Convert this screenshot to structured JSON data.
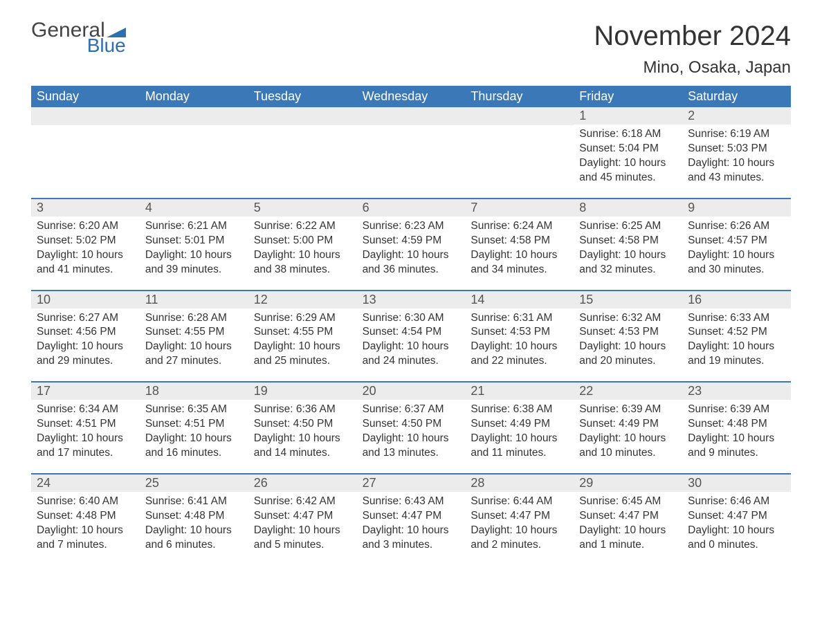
{
  "brand": {
    "name_part1": "General",
    "name_part2": "Blue",
    "icon_color": "#2f6fb0"
  },
  "title": "November 2024",
  "location": "Mino, Osaka, Japan",
  "colors": {
    "header_bg": "#3b78b8",
    "header_text": "#ffffff",
    "daynum_bg": "#ececec",
    "daynum_text": "#555555",
    "body_text": "#333333",
    "rule": "#3b78b8",
    "background": "#ffffff"
  },
  "layout": {
    "columns": 7,
    "rows": 5,
    "week_start": "Sunday"
  },
  "typography": {
    "title_fontsize": 40,
    "location_fontsize": 24,
    "weekday_fontsize": 18,
    "daynum_fontsize": 18,
    "body_fontsize": 15.5,
    "font_family": "Arial"
  },
  "weekdays": [
    "Sunday",
    "Monday",
    "Tuesday",
    "Wednesday",
    "Thursday",
    "Friday",
    "Saturday"
  ],
  "weeks": [
    [
      null,
      null,
      null,
      null,
      null,
      {
        "day": "1",
        "sunrise": "Sunrise: 6:18 AM",
        "sunset": "Sunset: 5:04 PM",
        "daylight1": "Daylight: 10 hours",
        "daylight2": "and 45 minutes."
      },
      {
        "day": "2",
        "sunrise": "Sunrise: 6:19 AM",
        "sunset": "Sunset: 5:03 PM",
        "daylight1": "Daylight: 10 hours",
        "daylight2": "and 43 minutes."
      }
    ],
    [
      {
        "day": "3",
        "sunrise": "Sunrise: 6:20 AM",
        "sunset": "Sunset: 5:02 PM",
        "daylight1": "Daylight: 10 hours",
        "daylight2": "and 41 minutes."
      },
      {
        "day": "4",
        "sunrise": "Sunrise: 6:21 AM",
        "sunset": "Sunset: 5:01 PM",
        "daylight1": "Daylight: 10 hours",
        "daylight2": "and 39 minutes."
      },
      {
        "day": "5",
        "sunrise": "Sunrise: 6:22 AM",
        "sunset": "Sunset: 5:00 PM",
        "daylight1": "Daylight: 10 hours",
        "daylight2": "and 38 minutes."
      },
      {
        "day": "6",
        "sunrise": "Sunrise: 6:23 AM",
        "sunset": "Sunset: 4:59 PM",
        "daylight1": "Daylight: 10 hours",
        "daylight2": "and 36 minutes."
      },
      {
        "day": "7",
        "sunrise": "Sunrise: 6:24 AM",
        "sunset": "Sunset: 4:58 PM",
        "daylight1": "Daylight: 10 hours",
        "daylight2": "and 34 minutes."
      },
      {
        "day": "8",
        "sunrise": "Sunrise: 6:25 AM",
        "sunset": "Sunset: 4:58 PM",
        "daylight1": "Daylight: 10 hours",
        "daylight2": "and 32 minutes."
      },
      {
        "day": "9",
        "sunrise": "Sunrise: 6:26 AM",
        "sunset": "Sunset: 4:57 PM",
        "daylight1": "Daylight: 10 hours",
        "daylight2": "and 30 minutes."
      }
    ],
    [
      {
        "day": "10",
        "sunrise": "Sunrise: 6:27 AM",
        "sunset": "Sunset: 4:56 PM",
        "daylight1": "Daylight: 10 hours",
        "daylight2": "and 29 minutes."
      },
      {
        "day": "11",
        "sunrise": "Sunrise: 6:28 AM",
        "sunset": "Sunset: 4:55 PM",
        "daylight1": "Daylight: 10 hours",
        "daylight2": "and 27 minutes."
      },
      {
        "day": "12",
        "sunrise": "Sunrise: 6:29 AM",
        "sunset": "Sunset: 4:55 PM",
        "daylight1": "Daylight: 10 hours",
        "daylight2": "and 25 minutes."
      },
      {
        "day": "13",
        "sunrise": "Sunrise: 6:30 AM",
        "sunset": "Sunset: 4:54 PM",
        "daylight1": "Daylight: 10 hours",
        "daylight2": "and 24 minutes."
      },
      {
        "day": "14",
        "sunrise": "Sunrise: 6:31 AM",
        "sunset": "Sunset: 4:53 PM",
        "daylight1": "Daylight: 10 hours",
        "daylight2": "and 22 minutes."
      },
      {
        "day": "15",
        "sunrise": "Sunrise: 6:32 AM",
        "sunset": "Sunset: 4:53 PM",
        "daylight1": "Daylight: 10 hours",
        "daylight2": "and 20 minutes."
      },
      {
        "day": "16",
        "sunrise": "Sunrise: 6:33 AM",
        "sunset": "Sunset: 4:52 PM",
        "daylight1": "Daylight: 10 hours",
        "daylight2": "and 19 minutes."
      }
    ],
    [
      {
        "day": "17",
        "sunrise": "Sunrise: 6:34 AM",
        "sunset": "Sunset: 4:51 PM",
        "daylight1": "Daylight: 10 hours",
        "daylight2": "and 17 minutes."
      },
      {
        "day": "18",
        "sunrise": "Sunrise: 6:35 AM",
        "sunset": "Sunset: 4:51 PM",
        "daylight1": "Daylight: 10 hours",
        "daylight2": "and 16 minutes."
      },
      {
        "day": "19",
        "sunrise": "Sunrise: 6:36 AM",
        "sunset": "Sunset: 4:50 PM",
        "daylight1": "Daylight: 10 hours",
        "daylight2": "and 14 minutes."
      },
      {
        "day": "20",
        "sunrise": "Sunrise: 6:37 AM",
        "sunset": "Sunset: 4:50 PM",
        "daylight1": "Daylight: 10 hours",
        "daylight2": "and 13 minutes."
      },
      {
        "day": "21",
        "sunrise": "Sunrise: 6:38 AM",
        "sunset": "Sunset: 4:49 PM",
        "daylight1": "Daylight: 10 hours",
        "daylight2": "and 11 minutes."
      },
      {
        "day": "22",
        "sunrise": "Sunrise: 6:39 AM",
        "sunset": "Sunset: 4:49 PM",
        "daylight1": "Daylight: 10 hours",
        "daylight2": "and 10 minutes."
      },
      {
        "day": "23",
        "sunrise": "Sunrise: 6:39 AM",
        "sunset": "Sunset: 4:48 PM",
        "daylight1": "Daylight: 10 hours",
        "daylight2": "and 9 minutes."
      }
    ],
    [
      {
        "day": "24",
        "sunrise": "Sunrise: 6:40 AM",
        "sunset": "Sunset: 4:48 PM",
        "daylight1": "Daylight: 10 hours",
        "daylight2": "and 7 minutes."
      },
      {
        "day": "25",
        "sunrise": "Sunrise: 6:41 AM",
        "sunset": "Sunset: 4:48 PM",
        "daylight1": "Daylight: 10 hours",
        "daylight2": "and 6 minutes."
      },
      {
        "day": "26",
        "sunrise": "Sunrise: 6:42 AM",
        "sunset": "Sunset: 4:47 PM",
        "daylight1": "Daylight: 10 hours",
        "daylight2": "and 5 minutes."
      },
      {
        "day": "27",
        "sunrise": "Sunrise: 6:43 AM",
        "sunset": "Sunset: 4:47 PM",
        "daylight1": "Daylight: 10 hours",
        "daylight2": "and 3 minutes."
      },
      {
        "day": "28",
        "sunrise": "Sunrise: 6:44 AM",
        "sunset": "Sunset: 4:47 PM",
        "daylight1": "Daylight: 10 hours",
        "daylight2": "and 2 minutes."
      },
      {
        "day": "29",
        "sunrise": "Sunrise: 6:45 AM",
        "sunset": "Sunset: 4:47 PM",
        "daylight1": "Daylight: 10 hours",
        "daylight2": "and 1 minute."
      },
      {
        "day": "30",
        "sunrise": "Sunrise: 6:46 AM",
        "sunset": "Sunset: 4:47 PM",
        "daylight1": "Daylight: 10 hours",
        "daylight2": "and 0 minutes."
      }
    ]
  ]
}
